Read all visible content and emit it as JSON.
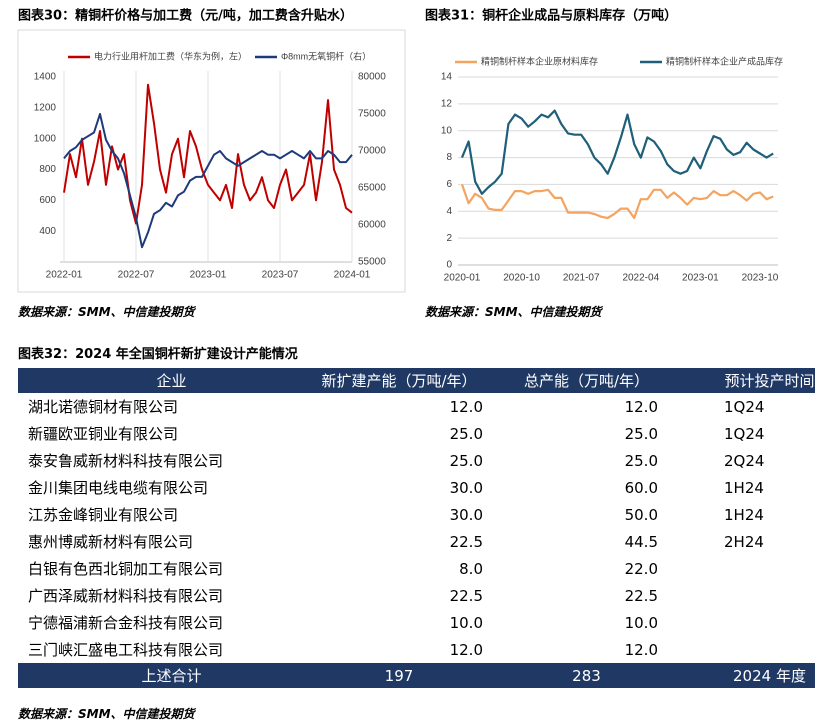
{
  "chart_data": [
    {
      "type": "line",
      "title": "图表30：精铜杆价格与加工费（元/吨，加工费含升贴水）",
      "categories": [
        "2022-01",
        null,
        null,
        null,
        null,
        null,
        null,
        null,
        null,
        null,
        null,
        null,
        "2022-07",
        null,
        null,
        null,
        null,
        null,
        null,
        null,
        null,
        null,
        null,
        null,
        "2023-01",
        null,
        null,
        null,
        null,
        null,
        null,
        null,
        null,
        null,
        null,
        null,
        "2023-07",
        null,
        null,
        null,
        null,
        null,
        null,
        null,
        null,
        null,
        null,
        null,
        "2024-01"
      ],
      "series": [
        {
          "name": "电力行业用杆加工费（华东为例，左）",
          "color": "#c00000",
          "values": [
            650,
            900,
            750,
            1000,
            700,
            850,
            1050,
            700,
            950,
            800,
            900,
            600,
            450,
            700,
            1350,
            1100,
            800,
            650,
            900,
            1000,
            750,
            1050,
            950,
            800,
            700,
            650,
            600,
            700,
            550,
            900,
            700,
            600,
            650,
            750,
            600,
            550,
            700,
            800,
            600,
            650,
            700,
            900,
            600,
            850,
            1250,
            800,
            700,
            550,
            520
          ]
        },
        {
          "name": "Φ8mm无氧铜杆（右）",
          "color": "#1f3a7a",
          "axis": "y2",
          "values": [
            69000,
            70000,
            70500,
            71500,
            72000,
            72500,
            75000,
            71500,
            70000,
            69000,
            67000,
            64000,
            61000,
            57000,
            59000,
            61500,
            62000,
            63000,
            62500,
            64000,
            64500,
            66000,
            66500,
            66500,
            68000,
            69500,
            70000,
            69000,
            68500,
            68000,
            68500,
            69000,
            69500,
            70000,
            69500,
            69500,
            69000,
            69500,
            70000,
            69500,
            69000,
            70000,
            69000,
            69000,
            70000,
            69500,
            68500,
            68500,
            69500
          ]
        }
      ],
      "ylim": [
        200,
        1400
      ],
      "yticks": [
        400,
        600,
        800,
        1000,
        1200,
        1400
      ],
      "y2lim": [
        55000,
        80000
      ],
      "y2ticks": [
        55000,
        60000,
        65000,
        70000,
        75000,
        80000
      ],
      "grid": false
    },
    {
      "type": "line",
      "title": "图表31：铜杆企业成品与原料库存（万吨）",
      "categories": [
        "2020-01",
        null,
        null,
        null,
        null,
        null,
        null,
        null,
        null,
        "2020-10",
        null,
        null,
        null,
        null,
        null,
        null,
        null,
        null,
        "2021-07",
        null,
        null,
        null,
        null,
        null,
        null,
        null,
        null,
        "2022-04",
        null,
        null,
        null,
        null,
        null,
        null,
        null,
        null,
        "2023-01",
        null,
        null,
        null,
        null,
        null,
        null,
        null,
        null,
        "2023-10",
        null,
        null
      ],
      "series": [
        {
          "name": "精铜制杆样本企业原材料库存",
          "color": "#f4a460",
          "values": [
            6.0,
            4.6,
            5.3,
            5.0,
            4.2,
            4.1,
            4.1,
            4.8,
            5.5,
            5.5,
            5.3,
            5.5,
            5.5,
            5.6,
            5.0,
            5.0,
            3.9,
            3.9,
            3.9,
            3.9,
            3.8,
            3.6,
            3.5,
            3.8,
            4.2,
            4.2,
            3.5,
            4.9,
            4.9,
            5.6,
            5.6,
            5.0,
            5.4,
            5.0,
            4.5,
            5.0,
            4.9,
            5.0,
            5.5,
            5.2,
            5.2,
            5.5,
            5.2,
            4.8,
            5.3,
            5.4,
            4.9,
            5.1
          ]
        },
        {
          "name": "精铜制杆样本企业产成品库存",
          "color": "#1f5f7a",
          "values": [
            8.0,
            9.2,
            6.2,
            5.3,
            5.8,
            6.2,
            6.8,
            10.5,
            11.2,
            10.9,
            10.3,
            10.7,
            11.2,
            11.0,
            11.5,
            10.5,
            9.8,
            9.7,
            9.7,
            9.0,
            8.0,
            7.5,
            6.8,
            8.0,
            9.5,
            11.2,
            9.0,
            8.0,
            9.5,
            9.2,
            8.5,
            7.5,
            7.0,
            6.8,
            7.0,
            8.0,
            7.2,
            8.5,
            9.6,
            9.4,
            8.6,
            8.2,
            8.4,
            9.1,
            8.6,
            8.3,
            8.0,
            8.3
          ]
        }
      ],
      "ylim": [
        0,
        14
      ],
      "yticks": [
        0,
        2,
        4,
        6,
        8,
        10,
        12,
        14
      ],
      "grid": true
    }
  ],
  "sources": [
    "数据来源：SMM、中信建投期货",
    "数据来源：SMM、中信建投期货",
    "数据来源：SMM、中信建投期货"
  ],
  "table": {
    "title": "图表32：2024 年全国铜杆新扩建设计产能情况",
    "header": [
      "企业",
      "新扩建产能（万吨/年）",
      "总产能（万吨/年）",
      "预计投产时间"
    ],
    "rows": [
      [
        "湖北诺德铜材有限公司",
        "12.0",
        "12.0",
        "1Q24"
      ],
      [
        "新疆欧亚铜业有限公司",
        "25.0",
        "25.0",
        "1Q24"
      ],
      [
        "泰安鲁威新材料科技有限公司",
        "25.0",
        "25.0",
        "2Q24"
      ],
      [
        "金川集团电线电缆有限公司",
        "30.0",
        "60.0",
        "1H24"
      ],
      [
        "江苏金峰铜业有限公司",
        "30.0",
        "50.0",
        "1H24"
      ],
      [
        "惠州博威新材料有限公司",
        "22.5",
        "44.5",
        "2H24"
      ],
      [
        "白银有色西北铜加工有限公司",
        "8.0",
        "22.0",
        null
      ],
      [
        "广西泽威新材料科技有限公司",
        "22.5",
        "22.5",
        null
      ],
      [
        "宁德福浦新合金科技有限公司",
        "10.0",
        "10.0",
        null
      ],
      [
        "三门峡汇盛电工科技有限公司",
        "12.0",
        "12.0",
        null
      ]
    ],
    "total": [
      "上述合计",
      "197",
      "283",
      "2024 年度"
    ]
  }
}
